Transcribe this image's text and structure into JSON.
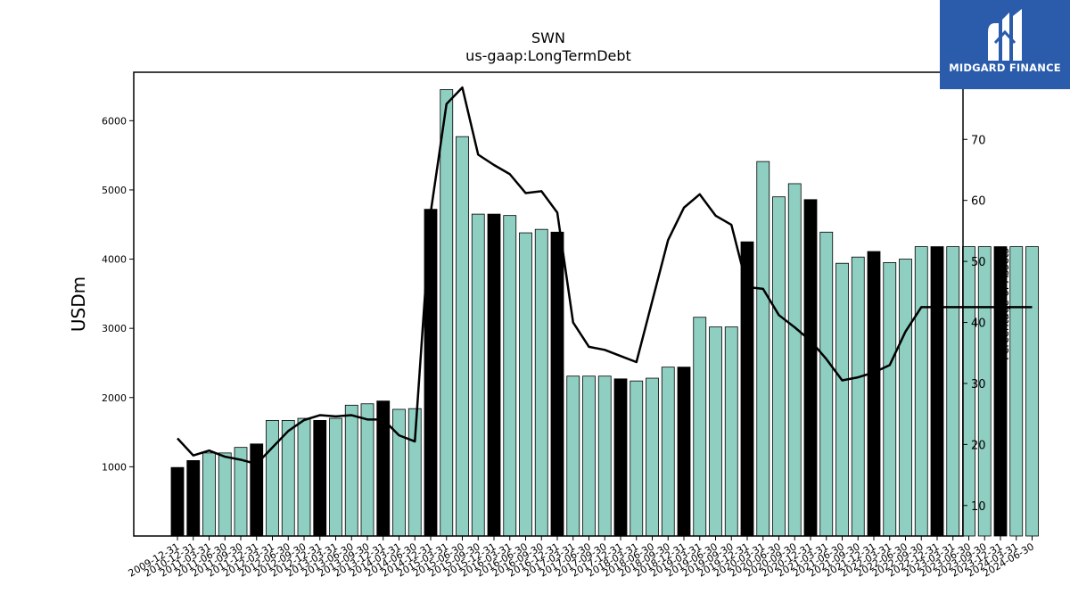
{
  "logo": {
    "text": "MIDGARD FINANCE",
    "icon": "midgard-m-logo-icon"
  },
  "chart_data": {
    "type": "bar",
    "title": "SWN",
    "subtitle": "us-gaap:LongTermDebt",
    "ylabel": "USDm",
    "y2label": "Percentage of Assets",
    "ylim": [
      0,
      6700
    ],
    "y2lim": [
      5,
      81
    ],
    "yticks": [
      1000,
      2000,
      3000,
      4000,
      5000,
      6000
    ],
    "y2ticks": [
      10,
      20,
      30,
      40,
      50,
      60,
      70
    ],
    "colors": {
      "annual": "#000000",
      "quarterly": "#8ecfc2",
      "line": "#000000"
    },
    "categories": [
      "2009-12-31",
      "2010-12-31",
      "2011-03-31",
      "2011-06-30",
      "2011-09-30",
      "2011-12-31",
      "2012-03-31",
      "2012-06-30",
      "2012-09-30",
      "2012-12-31",
      "2013-03-31",
      "2013-06-30",
      "2013-09-30",
      "2013-12-31",
      "2014-03-31",
      "2014-06-30",
      "2014-12-31",
      "2015-03-31",
      "2015-06-30",
      "2015-09-30",
      "2015-12-31",
      "2016-03-31",
      "2016-06-30",
      "2016-09-30",
      "2016-12-31",
      "2017-03-31",
      "2017-06-30",
      "2017-09-30",
      "2017-12-31",
      "2018-03-31",
      "2018-06-30",
      "2018-09-30",
      "2018-12-31",
      "2019-03-31",
      "2019-06-30",
      "2019-09-30",
      "2019-12-31",
      "2020-03-31",
      "2020-06-30",
      "2020-09-30",
      "2020-12-31",
      "2021-03-31",
      "2021-06-30",
      "2021-09-30",
      "2021-12-31",
      "2022-03-31",
      "2022-06-30",
      "2022-09-30",
      "2022-12-31",
      "2023-03-31",
      "2023-06-30",
      "2023-09-30",
      "2023-12-31",
      "2024-03-31",
      "2024-06-30"
    ],
    "tick_labels": [
      "2009-12-31",
      "2010-12-31",
      "2011-03-31",
      "2011-06-30",
      "2011-09-30",
      "2011-12-31",
      "2012-03-31",
      "2012-06-30",
      "2012-09-30",
      "2012-12-31",
      "2013-03-31",
      "2013-06-30",
      "2013-09-30",
      "2013-12-31",
      "2014-03-31",
      "2014-06-30",
      "2014-12-31",
      "2015-03-31",
      "2015-06-30",
      "2015-09-30",
      "2015-12-31",
      "2016-03-31",
      "2016-06-30",
      "2016-09-30",
      "2016-12-31",
      "2017-03-31",
      "2017-06-30",
      "2017-09-30",
      "2017-12-31",
      "2018-03-31",
      "2018-06-30",
      "2018-09-30",
      "2018-12-31",
      "2019-03-31",
      "2019-06-30",
      "2019-09-30",
      "2019-12-31",
      "2020-03-31",
      "2020-06-30",
      "2020-09-30",
      "2020-12-31",
      "2021-03-31",
      "2021-06-30",
      "2021-09-30",
      "2021-12-31",
      "2022-03-31",
      "2022-06-30",
      "2022-09-30",
      "2022-12-31",
      "2023-03-31",
      "2023-06-30",
      "2023-09-30",
      "2023-12-31",
      "2024-03-31",
      "2024-06-30"
    ],
    "annual": [
      true,
      true,
      false,
      false,
      false,
      true,
      false,
      false,
      false,
      true,
      false,
      false,
      false,
      true,
      false,
      false,
      true,
      false,
      false,
      false,
      true,
      false,
      false,
      false,
      true,
      false,
      false,
      false,
      true,
      false,
      false,
      false,
      true,
      false,
      false,
      false,
      true,
      false,
      false,
      false,
      true,
      false,
      false,
      false,
      true,
      false,
      false,
      false,
      true,
      false,
      false,
      false,
      true,
      false,
      false
    ],
    "series": [
      {
        "kind": "bar",
        "axis": "left",
        "values": [
          990,
          1090,
          1200,
          1200,
          1280,
          1330,
          1670,
          1670,
          1700,
          1670,
          1700,
          1890,
          1910,
          1950,
          1830,
          1840,
          4720,
          6450,
          5770,
          4650,
          4650,
          4630,
          4380,
          4430,
          4390,
          2310,
          2310,
          2310,
          2270,
          2240,
          2280,
          2440,
          2440,
          3160,
          3020,
          3020,
          4250,
          5410,
          4900,
          5090,
          4860,
          4390,
          3940,
          4030,
          4110,
          3950,
          4000,
          4180,
          4180,
          4180,
          4180,
          4180,
          4180,
          4180,
          4180
        ]
      },
      {
        "kind": "line",
        "axis": "right",
        "values": [
          21.0,
          18.2,
          19.0,
          18.0,
          17.5,
          16.8,
          19.5,
          22.2,
          24.0,
          24.8,
          24.6,
          24.8,
          24.1,
          24.1,
          21.5,
          20.5,
          58.0,
          75.8,
          78.5,
          67.5,
          65.8,
          64.3,
          61.2,
          61.5,
          58.0,
          40.0,
          36.0,
          35.5,
          34.5,
          33.5,
          43.5,
          53.5,
          58.8,
          61.0,
          57.5,
          56.0,
          45.8,
          45.5,
          41.2,
          39.2,
          37.0,
          34.0,
          30.5,
          31.0,
          31.8,
          33.0,
          38.5,
          42.5,
          42.5,
          42.5,
          42.5,
          42.5,
          42.5,
          42.5,
          42.5
        ]
      }
    ],
    "legend": "none",
    "grid": false
  }
}
